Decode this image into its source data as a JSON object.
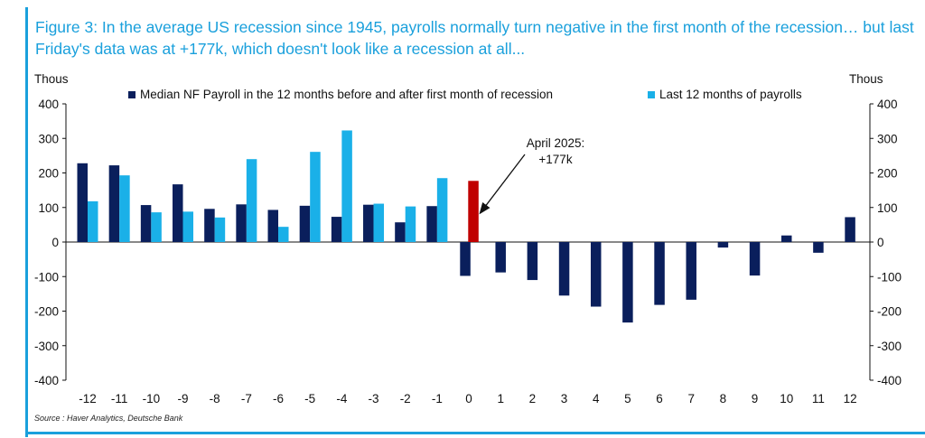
{
  "title": "Figure 3: In the average US recession since 1945, payrolls normally turn negative in the first month of the recession… but last Friday's data was at +177k, which doesn't look like a recession at all...",
  "source": "Source : Haver Analytics, Deutsche Bank",
  "chart_data": {
    "type": "bar",
    "ylabel_left": "Thous",
    "ylabel_right": "Thous",
    "ylim": [
      -400,
      400
    ],
    "yticks": [
      -400,
      -300,
      -200,
      -100,
      0,
      100,
      200,
      300,
      400
    ],
    "legend_position": "top",
    "categories": [
      "-12",
      "-11",
      "-10",
      "-9",
      "-8",
      "-7",
      "-6",
      "-5",
      "-4",
      "-3",
      "-2",
      "-1",
      "0",
      "1",
      "2",
      "3",
      "4",
      "5",
      "6",
      "7",
      "8",
      "9",
      "10",
      "11",
      "12"
    ],
    "series": [
      {
        "name": "Median NF Payroll in the 12 months before and after first month of recession",
        "color": "#0a1f5c",
        "values": [
          228,
          222,
          107,
          167,
          96,
          109,
          93,
          105,
          73,
          108,
          57,
          104,
          -98,
          -88,
          -110,
          -155,
          -187,
          -233,
          -182,
          -167,
          -16,
          -97,
          19,
          -31,
          72
        ]
      },
      {
        "name": "Last 12 months of payrolls",
        "color": "#1ab0e8",
        "values": [
          118,
          193,
          86,
          88,
          71,
          240,
          44,
          261,
          323,
          111,
          103,
          185,
          null,
          null,
          null,
          null,
          null,
          null,
          null,
          null,
          null,
          null,
          null,
          null,
          null
        ]
      }
    ],
    "highlight": {
      "category": "0",
      "value": 177,
      "color": "#c00000"
    },
    "annotation": {
      "lines": [
        "April 2025:",
        "+177k"
      ],
      "target_category": "0"
    }
  }
}
